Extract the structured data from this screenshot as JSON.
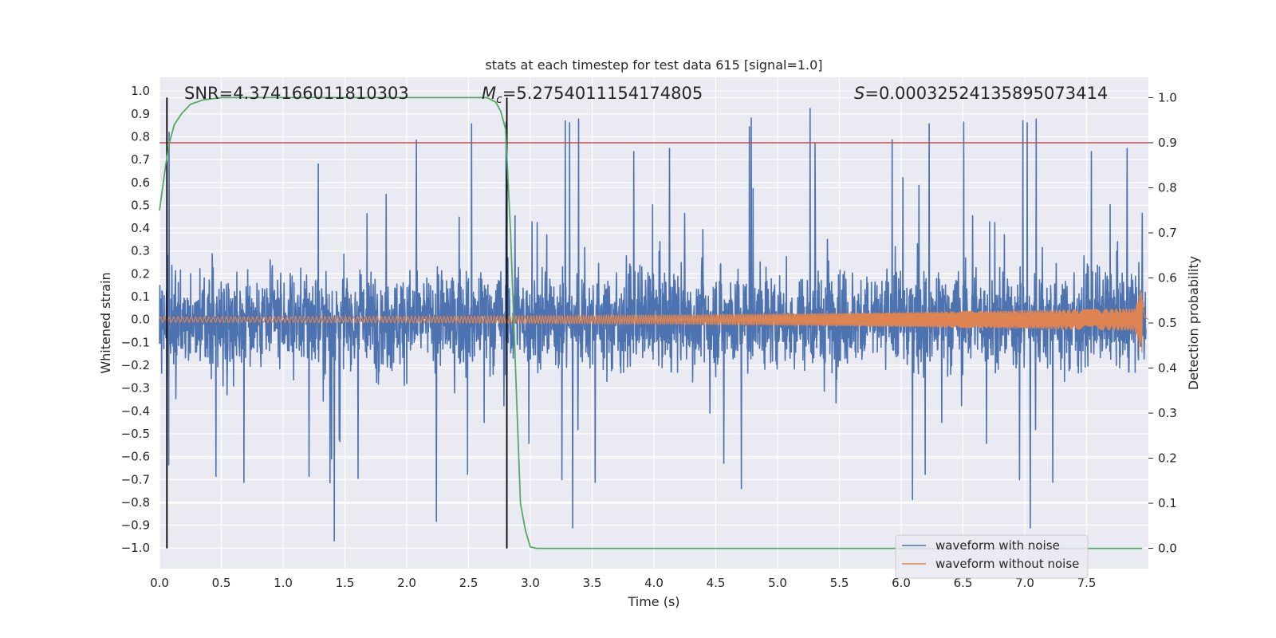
{
  "chart_data": {
    "type": "line",
    "title": "stats at each timestep for test data 615 [signal=1.0]",
    "xlabel": "Time (s)",
    "ylabel_left": "Whitened strain",
    "ylabel_right": "Detection probability",
    "xlim": [
      0.0,
      8.0
    ],
    "ylim_left": [
      -1.09,
      1.06
    ],
    "ylim_right": [
      -0.045,
      1.045
    ],
    "grid": true,
    "x_ticks": [
      "0.0",
      "0.5",
      "1.0",
      "1.5",
      "2.0",
      "2.5",
      "3.0",
      "3.5",
      "4.0",
      "4.5",
      "5.0",
      "5.5",
      "6.0",
      "6.5",
      "7.0",
      "7.5"
    ],
    "y_left_ticks": [
      "1.0",
      "0.9",
      "0.8",
      "0.7",
      "0.6",
      "0.5",
      "0.4",
      "0.3",
      "0.2",
      "0.1",
      "0.0",
      "−0.1",
      "−0.2",
      "−0.3",
      "−0.4",
      "−0.5",
      "−0.6",
      "−0.7",
      "−0.8",
      "−0.9",
      "−1.0"
    ],
    "y_right_ticks": [
      "1.0",
      "0.9",
      "0.8",
      "0.7",
      "0.6",
      "0.5",
      "0.4",
      "0.3",
      "0.2",
      "0.1",
      "0.0"
    ],
    "annotations": {
      "snr": "SNR=4.374166011810303",
      "mc": "=5.2754011154174805",
      "mc_symbol": "M",
      "mc_sub": "c",
      "s": "=0.00032524135895073414",
      "s_symbol": "S"
    },
    "vertical_lines_x": [
      0.06,
      2.81
    ],
    "threshold_y_right": 0.9,
    "series": [
      {
        "name": "waveform with noise",
        "color": "#4c72b0",
        "axis": "left",
        "noise_envelope": {
          "typical": 0.3,
          "peak": 0.98
        }
      },
      {
        "name": "waveform without noise",
        "color": "#dd8452",
        "axis": "left",
        "chirp": {
          "start_amp": 0.012,
          "end_amp": 0.05,
          "peak_x": 7.95,
          "peak_amp": 0.15
        }
      },
      {
        "name": "detection probability",
        "color": "#55a868",
        "axis": "right",
        "x": [
          0.0,
          0.05,
          0.08,
          0.12,
          0.18,
          0.25,
          0.35,
          0.5,
          0.7,
          1.0,
          1.5,
          2.0,
          2.5,
          2.65,
          2.72,
          2.76,
          2.8,
          2.84,
          2.88,
          2.92,
          2.96,
          3.0,
          3.05,
          3.15,
          3.5,
          4.0,
          5.0,
          6.0,
          7.0,
          7.95
        ],
        "y": [
          0.75,
          0.85,
          0.9,
          0.94,
          0.965,
          0.985,
          0.995,
          1.0,
          1.0,
          1.0,
          1.0,
          1.0,
          1.0,
          1.0,
          0.99,
          0.97,
          0.93,
          0.7,
          0.4,
          0.1,
          0.04,
          0.003,
          0.0,
          0.0,
          0.0,
          0.0,
          0.0,
          0.0,
          0.0,
          0.0
        ]
      }
    ],
    "threshold_color": "#c44e52",
    "legend": {
      "location": "lower-right",
      "entries": [
        {
          "label": "waveform with noise",
          "color": "#4c72b0"
        },
        {
          "label": "waveform without noise",
          "color": "#dd8452"
        }
      ]
    }
  }
}
